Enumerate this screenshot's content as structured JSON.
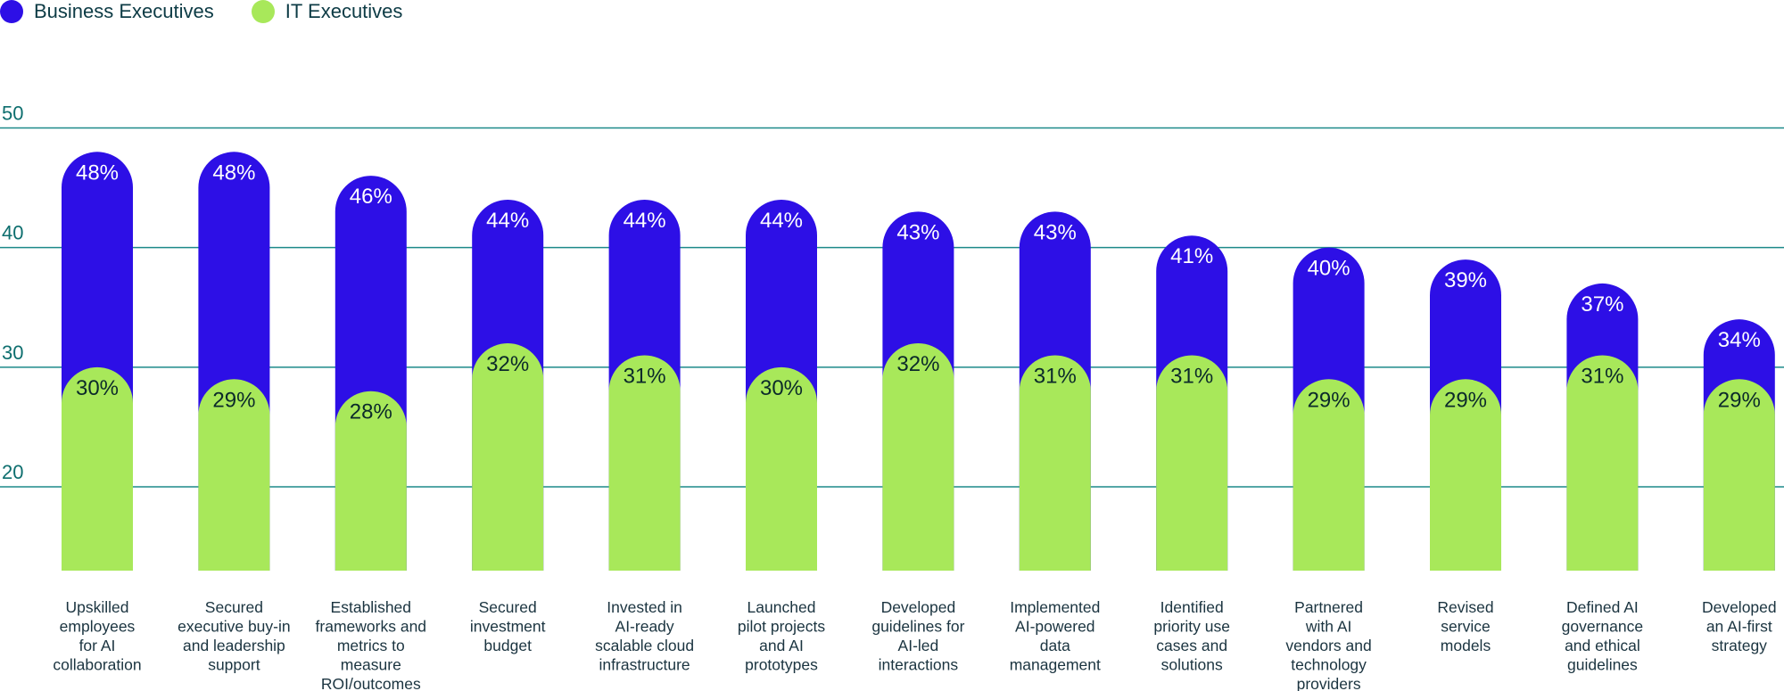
{
  "legend": {
    "business_label": "Business Executives",
    "it_label": "IT Executives"
  },
  "colors": {
    "business": "#2d0fe6",
    "it": "#a8e85a",
    "gridline": "#1d8a8a"
  },
  "chart_data": {
    "type": "bar",
    "yticks": [
      20,
      30,
      40,
      50
    ],
    "ylim": [
      13,
      52
    ],
    "grid": true,
    "legend_position": "top-left",
    "categories": [
      [
        "Upskilled",
        "employees",
        "for AI",
        "collaboration"
      ],
      [
        "Secured",
        "executive buy-in",
        "and leadership",
        "support"
      ],
      [
        "Established",
        "frameworks and",
        "metrics to",
        "measure",
        "ROI/outcomes"
      ],
      [
        "Secured",
        "investment",
        "budget"
      ],
      [
        "Invested in",
        "AI-ready",
        "scalable cloud",
        "infrastructure"
      ],
      [
        "Launched",
        "pilot projects",
        "and AI",
        "prototypes"
      ],
      [
        "Developed",
        "guidelines for",
        "AI-led",
        "interactions"
      ],
      [
        "Implemented",
        "AI-powered",
        "data",
        "management"
      ],
      [
        "Identified",
        "priority use",
        "cases and",
        "solutions"
      ],
      [
        "Partnered",
        "with AI",
        "vendors and",
        "technology",
        "providers"
      ],
      [
        "Revised",
        "service",
        "models"
      ],
      [
        "Defined AI",
        "governance",
        "and ethical",
        "guidelines"
      ],
      [
        "Developed",
        "an AI-first",
        "strategy"
      ]
    ],
    "series": [
      {
        "name": "Business Executives",
        "values": [
          48,
          48,
          46,
          44,
          44,
          44,
          43,
          43,
          41,
          40,
          39,
          37,
          34
        ],
        "labels": [
          "48%",
          "48%",
          "46%",
          "44%",
          "44%",
          "44%",
          "43%",
          "43%",
          "41%",
          "40%",
          "39%",
          "37%",
          "34%"
        ]
      },
      {
        "name": "IT Executives",
        "values": [
          30,
          29,
          28,
          32,
          31,
          30,
          32,
          31,
          31,
          29,
          29,
          31,
          29
        ],
        "labels": [
          "30%",
          "29%",
          "28%",
          "32%",
          "31%",
          "30%",
          "32%",
          "31%",
          "31%",
          "29%",
          "29%",
          "31%",
          "29%"
        ]
      }
    ]
  }
}
